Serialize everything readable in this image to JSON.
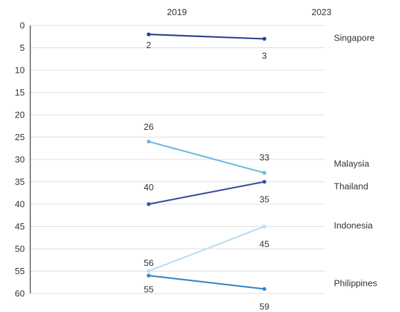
{
  "chart_data": {
    "type": "line",
    "x": [
      "2019",
      "2023"
    ],
    "y_inverted": true,
    "ylim": [
      0,
      60
    ],
    "y_ticks": [
      "0",
      "5",
      "10",
      "15",
      "20",
      "25",
      "30",
      "35",
      "40",
      "45",
      "50",
      "55",
      "60"
    ],
    "grid": "horizontal",
    "series": [
      {
        "name": "Singapore",
        "values": [
          2,
          3
        ],
        "value_labels": [
          "2",
          "3"
        ],
        "color": "#2e3e8c"
      },
      {
        "name": "Malaysia",
        "values": [
          26,
          33
        ],
        "value_labels": [
          "26",
          "33"
        ],
        "color": "#6fb8e0"
      },
      {
        "name": "Thailand",
        "values": [
          40,
          35
        ],
        "value_labels": [
          "40",
          "35"
        ],
        "color": "#3d4fa0"
      },
      {
        "name": "Indonesia",
        "values": [
          55,
          45
        ],
        "value_labels": [
          "55",
          "45"
        ],
        "color": "#b8dff2"
      },
      {
        "name": "Philippines",
        "values": [
          56,
          59
        ],
        "value_labels": [
          "56",
          "59"
        ],
        "color": "#3a86c8"
      }
    ]
  }
}
